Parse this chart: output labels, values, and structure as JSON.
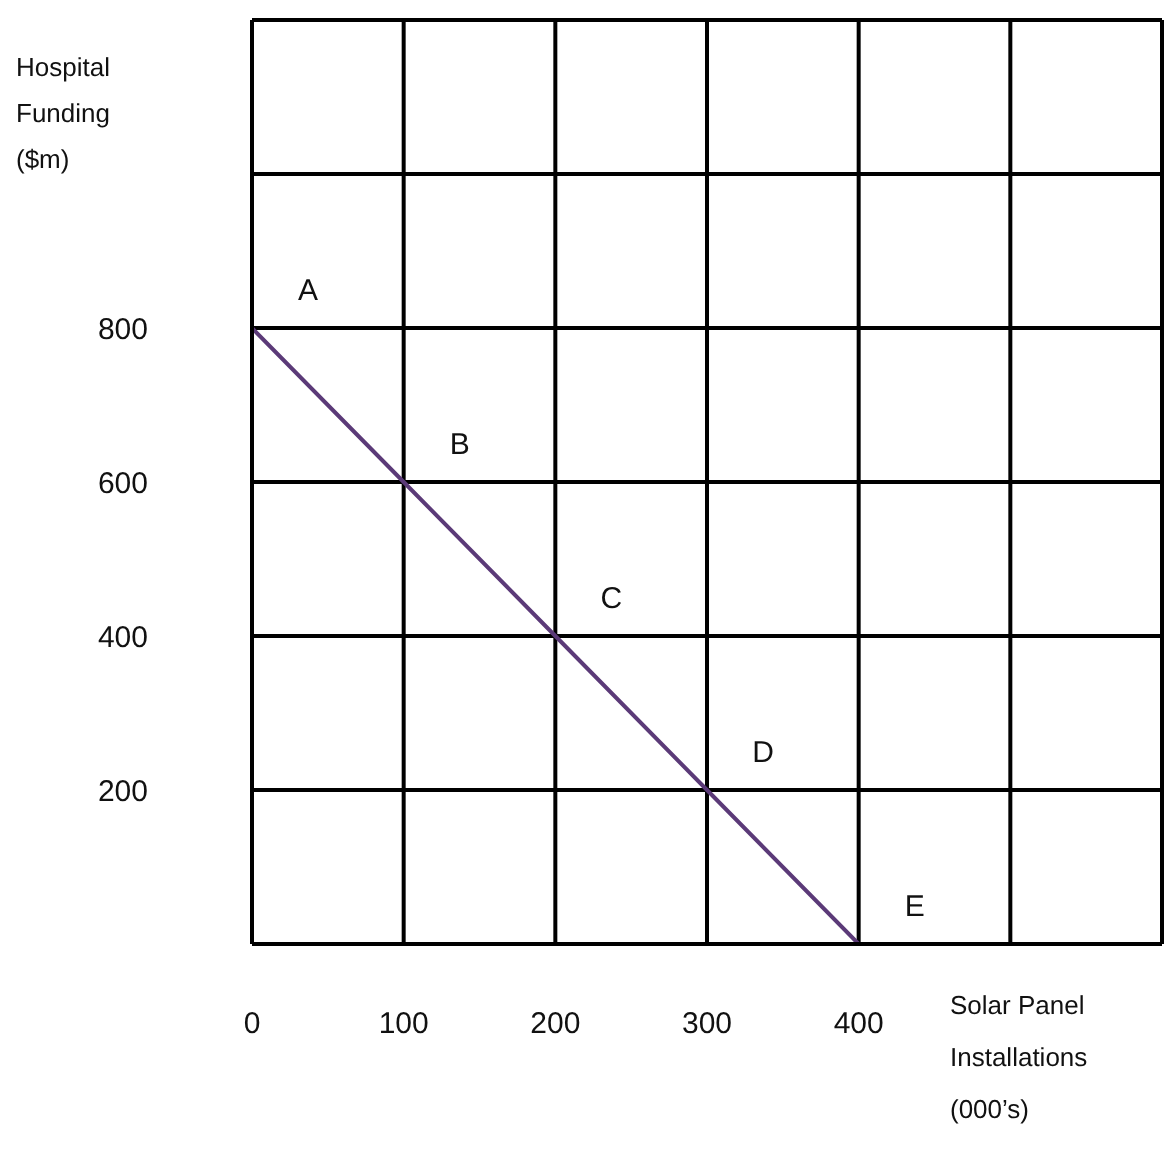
{
  "chart_data": {
    "type": "line",
    "xlabel": "Solar Panel Installations (000’s)",
    "ylabel": "Hospital Funding ($m)",
    "x": [
      0,
      100,
      200,
      300,
      400
    ],
    "series": [
      {
        "color": "#5b3a78",
        "values": [
          800,
          600,
          400,
          200,
          0
        ]
      }
    ],
    "xlim": [
      0,
      600
    ],
    "xticks": [
      0,
      100,
      200,
      300,
      400,
      {
        "value": 500,
        "label": null
      },
      {
        "value": 600,
        "label": null
      }
    ],
    "ylim": [
      0,
      1200
    ],
    "yticks": [
      {
        "value": 0,
        "label": null
      },
      200,
      400,
      600,
      800,
      {
        "value": 1000,
        "label": null
      },
      {
        "value": 1200,
        "label": null
      }
    ],
    "grid": true,
    "marker": "none",
    "line_style": "solid",
    "annotations": [
      {
        "text": "A",
        "x": 0,
        "y": 800
      },
      {
        "text": "B",
        "x": 100,
        "y": 600
      },
      {
        "text": "C",
        "x": 200,
        "y": 400
      },
      {
        "text": "D",
        "x": 300,
        "y": 200
      },
      {
        "text": "E",
        "x": 400,
        "y": 0
      }
    ]
  }
}
